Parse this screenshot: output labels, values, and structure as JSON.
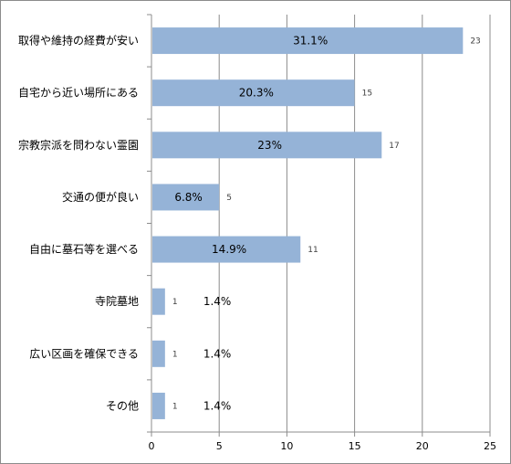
{
  "chart_data": {
    "type": "bar",
    "orientation": "horizontal",
    "categories": [
      "取得や維持の経費が安い",
      "自宅から近い場所にある",
      "宗教宗派を問わない霊園",
      "交通の便が良い",
      "自由に墓石等を選べる",
      "寺院墓地",
      "広い区画を確保できる",
      "その他"
    ],
    "values": [
      23,
      15,
      17,
      5,
      11,
      1,
      1,
      1
    ],
    "percent_labels": [
      "31.1%",
      "20.3%",
      "23%",
      "6.8%",
      "14.9%",
      "1.4%",
      "1.4%",
      "1.4%"
    ],
    "value_labels": [
      "23",
      "15",
      "17",
      "5",
      "11",
      "1",
      "1",
      "1"
    ],
    "x_ticks": [
      "0",
      "5",
      "10",
      "15",
      "20",
      "25"
    ],
    "xlim": [
      0,
      25
    ],
    "grid": true,
    "bar_color": "#95B3D7",
    "grid_color": "#8c8c8c"
  }
}
